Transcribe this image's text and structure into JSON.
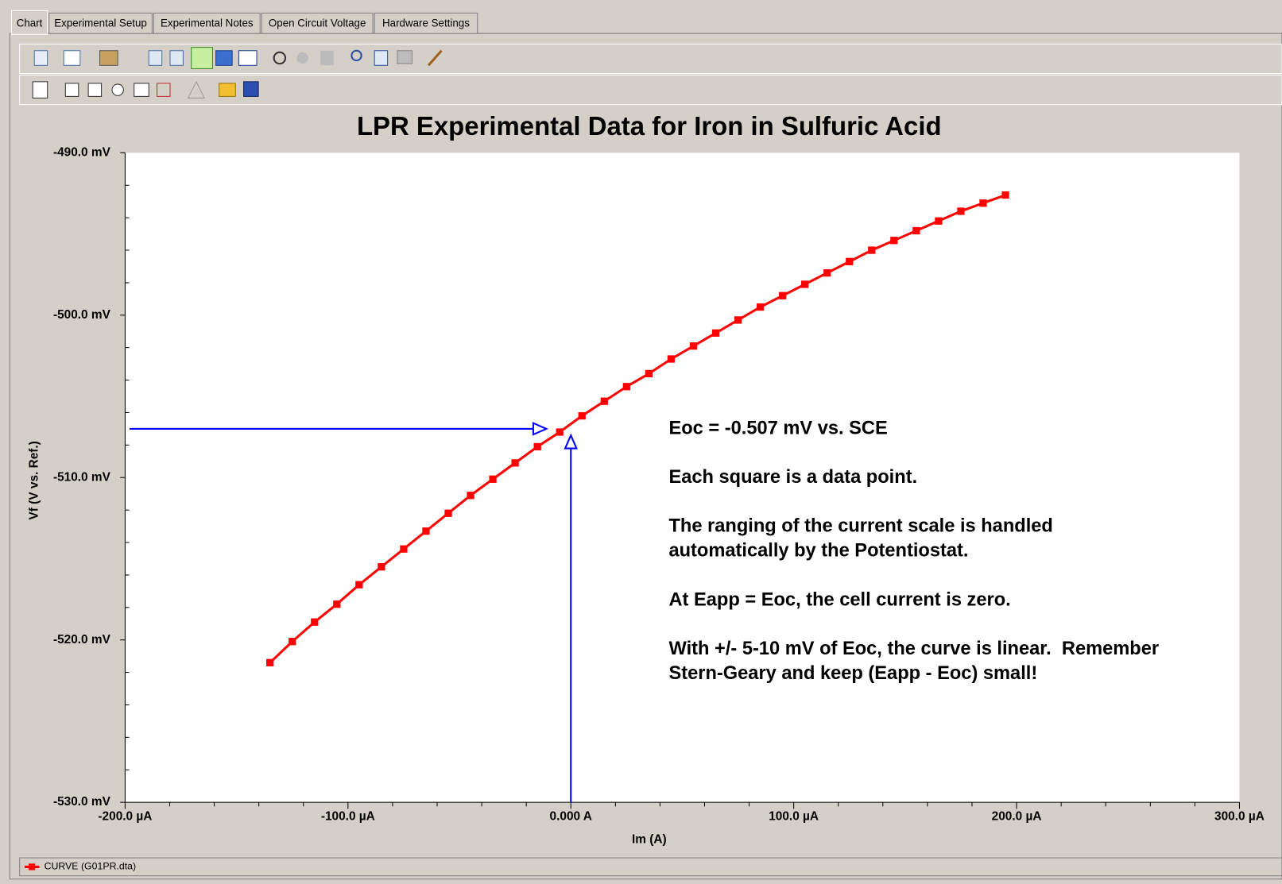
{
  "tabs": [
    "Chart",
    "Experimental Setup",
    "Experimental Notes",
    "Open Circuit Voltage",
    "Hardware Settings"
  ],
  "chart_data": {
    "type": "line",
    "title": "LPR Experimental Data for Iron in Sulfuric Acid",
    "x_label": "Im (A)",
    "y_label": "Vf (V vs. Ref.)",
    "xlim": [
      -200,
      300
    ],
    "ylim": [
      -530,
      -490
    ],
    "xticks": [
      {
        "value": -200,
        "label": "-200.0 µA"
      },
      {
        "value": -100,
        "label": "-100.0 µA"
      },
      {
        "value": 0,
        "label": "0.000 A"
      },
      {
        "value": 100,
        "label": "100.0 µA"
      },
      {
        "value": 200,
        "label": "200.0 µA"
      },
      {
        "value": 300,
        "label": "300.0 µA"
      }
    ],
    "yticks": [
      {
        "value": -490,
        "label": "-490.0 mV"
      },
      {
        "value": -500,
        "label": "-500.0 mV"
      },
      {
        "value": -510,
        "label": "-510.0 mV"
      },
      {
        "value": -520,
        "label": "-520.0 mV"
      },
      {
        "value": -530,
        "label": "-530.0 mV"
      }
    ],
    "xminorticks": [
      -180,
      -160,
      -140,
      -120,
      -80,
      -60,
      -40,
      -20,
      20,
      40,
      60,
      80,
      120,
      140,
      160,
      180,
      220,
      240,
      260,
      280
    ],
    "yminorticks": [
      -492,
      -494,
      -496,
      -498,
      -502,
      -504,
      -506,
      -508,
      -512,
      -514,
      -516,
      -518,
      -522,
      -524,
      -526,
      -528
    ],
    "series": [
      {
        "name": "CURVE (G01PR.dta)",
        "color": "#ff0000",
        "x": [
          -135,
          -125,
          -115,
          -105,
          -95,
          -85,
          -75,
          -65,
          -55,
          -45,
          -35,
          -25,
          -15,
          -5,
          5,
          15,
          25,
          35,
          45,
          55,
          65,
          75,
          85,
          95,
          105,
          115,
          125,
          135,
          145,
          155,
          165,
          175,
          185,
          195
        ],
        "values": [
          -521.4,
          -520.1,
          -518.9,
          -517.8,
          -516.6,
          -515.5,
          -514.4,
          -513.3,
          -512.2,
          -511.1,
          -510.1,
          -509.1,
          -508.1,
          -507.2,
          -506.2,
          -505.3,
          -504.4,
          -503.6,
          -502.7,
          -501.9,
          -501.1,
          -500.3,
          -499.5,
          -498.8,
          -498.1,
          -497.4,
          -496.7,
          -496.0,
          -495.4,
          -494.8,
          -494.2,
          -493.6,
          -493.1,
          -492.6
        ]
      }
    ],
    "arrows": [
      {
        "x": [
          -198,
          -11
        ],
        "y": [
          -507,
          -507
        ]
      },
      {
        "x": [
          0,
          0
        ],
        "y": [
          -530,
          -507.4
        ]
      }
    ],
    "annotations": [
      "Eoc = -0.507 mV vs. SCE",
      "Each square is a data point.",
      "The ranging of the current scale is handled",
      "automatically by the Potentiostat.",
      "At Eapp = Eoc, the cell current is zero.",
      "With +/- 5-10 mV of Eoc, the curve is linear.  Remember",
      "Stern-Geary and keep (Eapp - Eoc) small!"
    ],
    "legend": "bottom-left"
  }
}
